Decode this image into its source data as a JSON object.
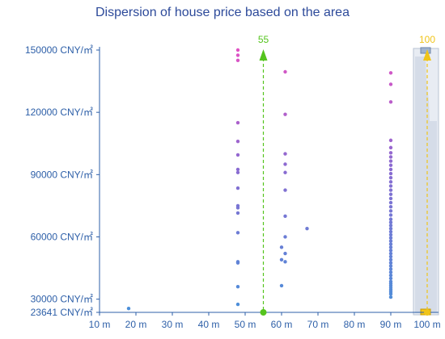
{
  "chart_data": {
    "type": "scatter",
    "title": "Dispersion of house price based on the area",
    "xlabel": "",
    "ylabel": "",
    "xlim": [
      10,
      100
    ],
    "ylim": [
      23641,
      150000
    ],
    "x_ticks": [
      10,
      20,
      30,
      40,
      50,
      60,
      70,
      80,
      90,
      100
    ],
    "x_tick_labels": [
      "10 m",
      "20 m",
      "30 m",
      "40 m",
      "50 m",
      "60 m",
      "70 m",
      "80 m",
      "90 m",
      "100 m"
    ],
    "y_ticks": [
      23641,
      30000,
      60000,
      90000,
      120000,
      150000
    ],
    "y_tick_labels": [
      "23641 CNY/㎡",
      "30000 CNY/㎡",
      "60000 CNY/㎡",
      "90000 CNY/㎡",
      "120000 CNY/㎡",
      "150000 CNY/㎡"
    ],
    "grid": false,
    "colors": {
      "low": "#4a90d9",
      "mid": "#8a6bd1",
      "high": "#e052c4",
      "axis": "#2d5fa8",
      "marker": "#7ed321",
      "max_marker": "#f5c518",
      "panel": "#d5dce8"
    },
    "markers": [
      {
        "label": "55",
        "x": 55,
        "color": "#55c41e"
      },
      {
        "label": "100",
        "x": 100,
        "color": "#f0c419"
      }
    ],
    "points": [
      [
        18,
        25500
      ],
      [
        48,
        27500
      ],
      [
        48,
        36000
      ],
      [
        48,
        47500
      ],
      [
        48,
        48000
      ],
      [
        48,
        62000
      ],
      [
        48,
        71500
      ],
      [
        48,
        74000
      ],
      [
        48,
        75000
      ],
      [
        48,
        83500
      ],
      [
        48,
        91000
      ],
      [
        48,
        92500
      ],
      [
        48,
        99500
      ],
      [
        48,
        106000
      ],
      [
        48,
        115000
      ],
      [
        48,
        145000
      ],
      [
        48,
        147500
      ],
      [
        48,
        150000
      ],
      [
        60,
        36500
      ],
      [
        60,
        49000
      ],
      [
        60,
        55000
      ],
      [
        61,
        48000
      ],
      [
        61,
        52000
      ],
      [
        61,
        60000
      ],
      [
        61,
        70000
      ],
      [
        61,
        82500
      ],
      [
        61,
        91000
      ],
      [
        61,
        95000
      ],
      [
        61,
        100000
      ],
      [
        61,
        119000
      ],
      [
        61,
        139500
      ],
      [
        67,
        64000
      ],
      [
        90,
        31000
      ],
      [
        90,
        32500
      ],
      [
        90,
        33500
      ],
      [
        90,
        34500
      ],
      [
        90,
        35500
      ],
      [
        90,
        36500
      ],
      [
        90,
        37500
      ],
      [
        90,
        38500
      ],
      [
        90,
        40000
      ],
      [
        90,
        41500
      ],
      [
        90,
        43000
      ],
      [
        90,
        44500
      ],
      [
        90,
        46000
      ],
      [
        90,
        47500
      ],
      [
        90,
        49000
      ],
      [
        90,
        50500
      ],
      [
        90,
        52000
      ],
      [
        90,
        53500
      ],
      [
        90,
        55000
      ],
      [
        90,
        56500
      ],
      [
        90,
        58000
      ],
      [
        90,
        59500
      ],
      [
        90,
        61000
      ],
      [
        90,
        62500
      ],
      [
        90,
        64000
      ],
      [
        90,
        65500
      ],
      [
        90,
        67000
      ],
      [
        90,
        68500
      ],
      [
        90,
        70500
      ],
      [
        90,
        72500
      ],
      [
        90,
        74500
      ],
      [
        90,
        76500
      ],
      [
        90,
        78500
      ],
      [
        90,
        80500
      ],
      [
        90,
        82500
      ],
      [
        90,
        84500
      ],
      [
        90,
        86500
      ],
      [
        90,
        88500
      ],
      [
        90,
        90500
      ],
      [
        90,
        92500
      ],
      [
        90,
        94500
      ],
      [
        90,
        96500
      ],
      [
        90,
        98500
      ],
      [
        90,
        100500
      ],
      [
        90,
        103000
      ],
      [
        90,
        106500
      ],
      [
        90,
        125000
      ],
      [
        90,
        133500
      ],
      [
        90,
        139000
      ]
    ]
  }
}
